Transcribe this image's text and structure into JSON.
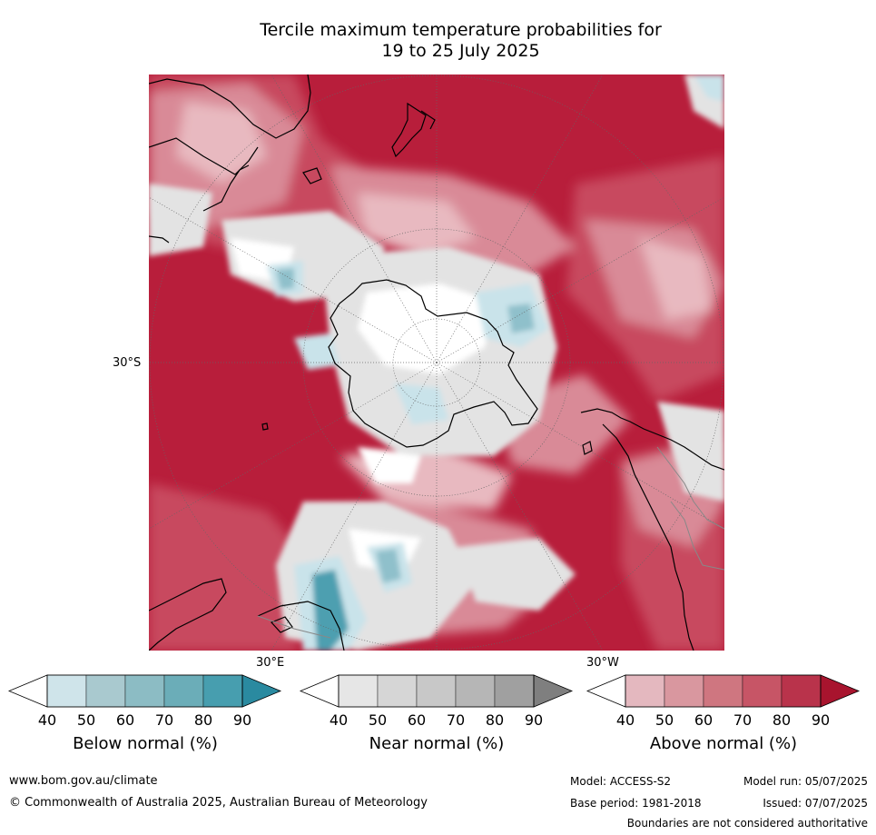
{
  "title_line1": "Tercile maximum temperature probabilities for",
  "title_line2": "19 to 25 July 2025",
  "map": {
    "lat_label": "30°S",
    "lon_label_left": "30°E",
    "lon_label_right": "30°W",
    "colors": {
      "above_dark": "#b81e3b",
      "above_mid": "#c8485f",
      "above_light": "#d98a97",
      "above_pale": "#e8b9c0",
      "near": "#e3e3e3",
      "below": "#c9e3ea",
      "below_mid": "#8fc0cb",
      "below_dark": "#4e9fb0",
      "land_outline": "#000000"
    }
  },
  "colorbars": [
    {
      "label": "Below normal (%)",
      "ticks": [
        "40",
        "50",
        "60",
        "70",
        "80",
        "90"
      ],
      "colors": [
        "#ffffff",
        "#cfe4ea",
        "#a9c9cf",
        "#8cbcc4",
        "#6badb8",
        "#479eaf",
        "#2a8aa0"
      ]
    },
    {
      "label": "Near normal (%)",
      "ticks": [
        "40",
        "50",
        "60",
        "70",
        "80",
        "90"
      ],
      "colors": [
        "#ffffff",
        "#e6e6e6",
        "#d6d6d6",
        "#c8c8c8",
        "#b6b6b6",
        "#a0a0a0",
        "#7f7f7f"
      ]
    },
    {
      "label": "Above normal (%)",
      "ticks": [
        "40",
        "50",
        "60",
        "70",
        "80",
        "90"
      ],
      "colors": [
        "#ffffff",
        "#e4b8bf",
        "#d9979f",
        "#cf7680",
        "#c75566",
        "#b9334b",
        "#a8142e"
      ]
    }
  ],
  "footer": {
    "url": "www.bom.gov.au/climate",
    "copyright": "© Commonwealth of Australia 2025, Australian Bureau of Meteorology",
    "model": "Model: ACCESS-S2",
    "base_period": "Base period: 1981-2018",
    "model_run": "Model run: 05/07/2025",
    "issued": "Issued: 07/07/2025",
    "disclaimer": "Boundaries are not considered authoritative"
  }
}
